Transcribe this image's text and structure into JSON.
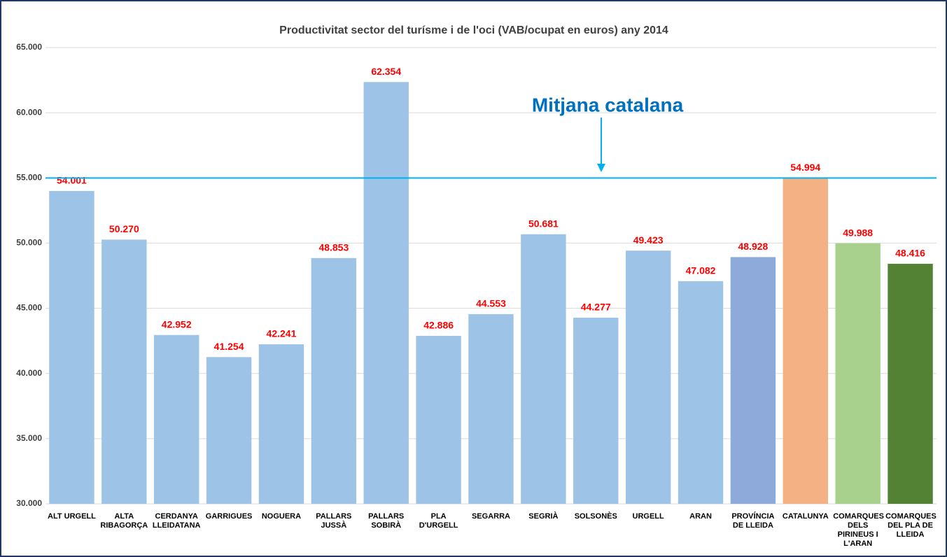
{
  "chart_data": {
    "type": "bar",
    "title": "Productivitat sector del turísme i de l'oci (VAB/ocupat en euros) any 2014",
    "categories": [
      "ALT URGELL",
      "ALTA RIBAGORÇA",
      "CERDANYA LLEIDATANA",
      "GARRIGUES",
      "NOGUERA",
      "PALLARS JUSSÀ",
      "PALLARS SOBIRÀ",
      "PLA D'URGELL",
      "SEGARRA",
      "SEGRIÀ",
      "SOLSONÈS",
      "URGELL",
      "ARAN",
      "PROVÍNCIA DE LLEIDA",
      "CATALUNYA",
      "COMARQUES DELS PIRINEUS I L'ARAN",
      "COMARQUES DEL PLA DE LLEIDA"
    ],
    "values": [
      54001,
      50270,
      42952,
      41254,
      42241,
      48853,
      62354,
      42886,
      44553,
      50681,
      44277,
      49423,
      47082,
      48928,
      54994,
      49988,
      48416
    ],
    "value_labels": [
      "54.001",
      "50.270",
      "42.952",
      "41.254",
      "42.241",
      "48.853",
      "62.354",
      "42.886",
      "44.553",
      "50.681",
      "44.277",
      "49.423",
      "47.082",
      "48.928",
      "54.994",
      "49.988",
      "48.416"
    ],
    "colors": [
      "#9dc3e6",
      "#9dc3e6",
      "#9dc3e6",
      "#9dc3e6",
      "#9dc3e6",
      "#9dc3e6",
      "#9dc3e6",
      "#9dc3e6",
      "#9dc3e6",
      "#9dc3e6",
      "#9dc3e6",
      "#9dc3e6",
      "#9dc3e6",
      "#8eaadb",
      "#f4b183",
      "#a9d18e",
      "#548235"
    ],
    "ylim": [
      30000,
      65000
    ],
    "yticks": [
      {
        "value": 30000,
        "label": "30.000"
      },
      {
        "value": 35000,
        "label": "35.000"
      },
      {
        "value": 40000,
        "label": "40.000"
      },
      {
        "value": 45000,
        "label": "45.000"
      },
      {
        "value": 50000,
        "label": "50.000"
      },
      {
        "value": 55000,
        "label": "55.000"
      },
      {
        "value": 60000,
        "label": "60.000"
      },
      {
        "value": 65000,
        "label": "65.000"
      }
    ],
    "grid": true,
    "reference_line": {
      "value": 54994,
      "label": "Mitjana catalana",
      "color": "#00b0f0"
    }
  }
}
